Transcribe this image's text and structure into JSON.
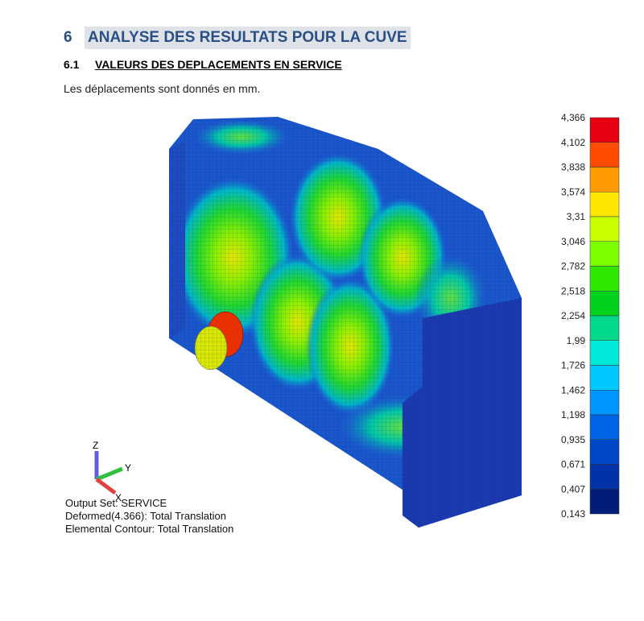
{
  "header": {
    "number": "6",
    "title": "ANALYSE DES RESULTATS POUR LA CUVE"
  },
  "subsection": {
    "number": "6.1",
    "title": "VALEURS DES DEPLACEMENTS EN SERVICE"
  },
  "paragraph": "Les déplacements sont donnés en mm.",
  "legend": {
    "labels": [
      "4,366",
      "4,102",
      "3,838",
      "3,574",
      "3,31",
      "3,046",
      "2,782",
      "2,518",
      "2,254",
      "1,99",
      "1,726",
      "1,462",
      "1,198",
      "0,935",
      "0,671",
      "0,407",
      "0,143"
    ],
    "colors": [
      "#e60012",
      "#ff4d00",
      "#ff9a00",
      "#ffe600",
      "#c8ff00",
      "#7dff00",
      "#2ee800",
      "#00d21e",
      "#00d88c",
      "#00e8d8",
      "#00c8ff",
      "#0096ff",
      "#0064e6",
      "#0046c8",
      "#0032aa",
      "#001e78"
    ]
  },
  "axes": {
    "z": "Z",
    "y": "Y",
    "x": "X"
  },
  "info": [
    "Output Set: SERVICE",
    "Deformed(4.366): Total Translation",
    "Elemental Contour: Total Translation"
  ]
}
